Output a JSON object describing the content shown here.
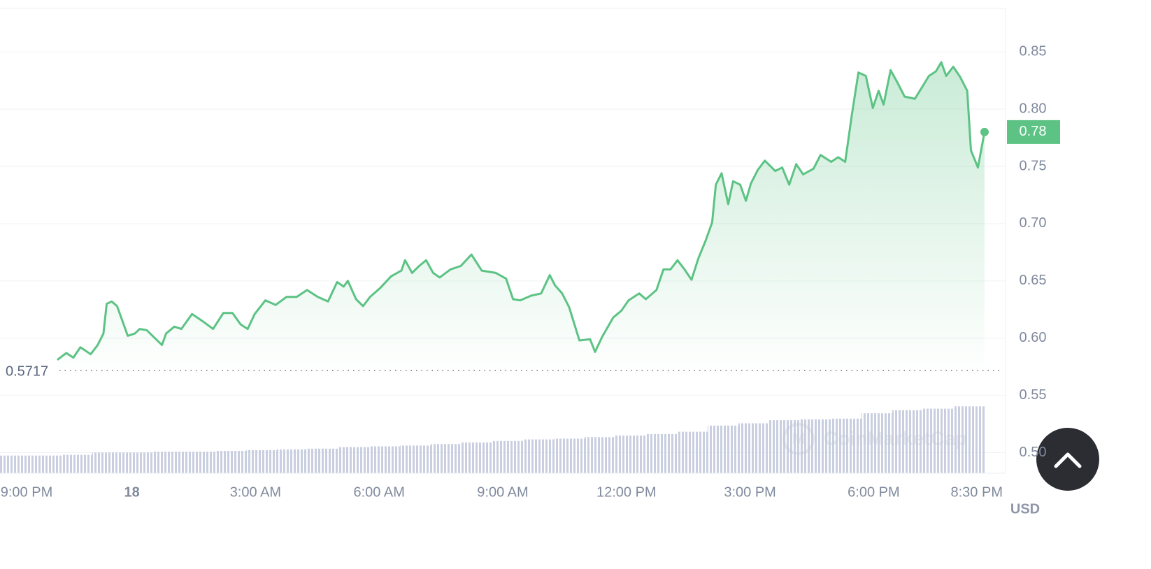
{
  "chart_data": {
    "type": "line",
    "x": [
      -1.81,
      -1.59,
      -1.42,
      -1.25,
      -1.0,
      -0.83,
      -0.69,
      -0.61,
      -0.49,
      -0.36,
      -0.1,
      0.07,
      0.19,
      0.36,
      0.53,
      0.73,
      0.83,
      1.03,
      1.2,
      1.46,
      1.71,
      1.97,
      2.22,
      2.44,
      2.64,
      2.81,
      2.98,
      3.24,
      3.49,
      3.75,
      4.0,
      4.25,
      4.51,
      4.76,
      4.98,
      5.14,
      5.24,
      5.44,
      5.61,
      5.78,
      6.03,
      6.29,
      6.54,
      6.63,
      6.8,
      6.97,
      7.14,
      7.31,
      7.47,
      7.73,
      7.98,
      8.24,
      8.49,
      8.83,
      9.08,
      9.25,
      9.42,
      9.68,
      9.93,
      10.14,
      10.27,
      10.44,
      10.61,
      10.86,
      11.12,
      11.24,
      11.41,
      11.68,
      11.88,
      12.05,
      12.31,
      12.47,
      12.73,
      12.9,
      13.07,
      13.24,
      13.41,
      13.58,
      13.75,
      13.92,
      14.08,
      14.17,
      14.31,
      14.47,
      14.59,
      14.76,
      14.9,
      15.02,
      15.19,
      15.36,
      15.61,
      15.78,
      15.95,
      16.12,
      16.29,
      16.54,
      16.71,
      16.97,
      17.14,
      17.31,
      17.47,
      17.63,
      17.81,
      17.98,
      18.12,
      18.24,
      18.41,
      18.58,
      18.75,
      19.0,
      19.17,
      19.34,
      19.51,
      19.64,
      19.76,
      19.93,
      20.1,
      20.27,
      20.36,
      20.53,
      20.69
    ],
    "series": [
      {
        "color": "#5cc384",
        "values": [
          0.581,
          0.587,
          0.583,
          0.592,
          0.586,
          0.594,
          0.604,
          0.63,
          0.632,
          0.628,
          0.602,
          0.604,
          0.608,
          0.607,
          0.601,
          0.594,
          0.604,
          0.61,
          0.608,
          0.621,
          0.615,
          0.608,
          0.622,
          0.622,
          0.612,
          0.608,
          0.621,
          0.633,
          0.629,
          0.636,
          0.636,
          0.642,
          0.636,
          0.632,
          0.649,
          0.645,
          0.65,
          0.634,
          0.628,
          0.636,
          0.644,
          0.654,
          0.659,
          0.668,
          0.657,
          0.663,
          0.668,
          0.657,
          0.653,
          0.66,
          0.663,
          0.673,
          0.659,
          0.657,
          0.652,
          0.634,
          0.633,
          0.637,
          0.639,
          0.655,
          0.646,
          0.639,
          0.627,
          0.598,
          0.599,
          0.588,
          0.601,
          0.618,
          0.624,
          0.633,
          0.639,
          0.634,
          0.642,
          0.66,
          0.66,
          0.668,
          0.66,
          0.651,
          0.67,
          0.685,
          0.701,
          0.734,
          0.744,
          0.717,
          0.737,
          0.734,
          0.72,
          0.735,
          0.747,
          0.755,
          0.746,
          0.749,
          0.734,
          0.752,
          0.743,
          0.748,
          0.76,
          0.754,
          0.758,
          0.754,
          0.795,
          0.832,
          0.829,
          0.801,
          0.816,
          0.804,
          0.834,
          0.823,
          0.811,
          0.809,
          0.819,
          0.829,
          0.833,
          0.841,
          0.829,
          0.837,
          0.828,
          0.816,
          0.764,
          0.749,
          0.78
        ]
      }
    ],
    "reference": 0.5717,
    "volume": {
      "color": "#c9cfe0",
      "lim": [
        0,
        100
      ],
      "values": [
        23,
        23,
        24,
        27,
        27,
        28,
        28,
        29,
        30,
        31,
        32,
        34,
        35,
        36,
        38,
        40,
        42,
        44,
        45,
        47,
        49,
        51,
        54,
        62,
        65,
        69,
        70,
        71,
        78,
        82,
        84,
        87
      ]
    },
    "xlim": [
      -3.2,
      21.2
    ],
    "xticks": [
      {
        "value": -3,
        "label": "9:00 PM"
      },
      {
        "value": 0,
        "label": "18"
      },
      {
        "value": 3,
        "label": "3:00 AM"
      },
      {
        "value": 6,
        "label": "6:00 AM"
      },
      {
        "value": 9,
        "label": "9:00 AM"
      },
      {
        "value": 12,
        "label": "12:00 PM"
      },
      {
        "value": 15,
        "label": "3:00 PM"
      },
      {
        "value": 18,
        "label": "6:00 PM"
      },
      {
        "value": 20.5,
        "label": "8:30 PM"
      }
    ],
    "ylim": [
      0.482,
      0.888
    ],
    "yticks": [
      {
        "value": 0.5,
        "label": "0.50"
      },
      0.55,
      {
        "value": 0.6,
        "label": "0.60"
      },
      0.65,
      {
        "value": 0.7,
        "label": "0.70"
      },
      0.75,
      {
        "value": 0.8,
        "label": "0.80"
      },
      0.85
    ],
    "grid": true,
    "currency": "USD",
    "watermark": "CoinMarketCap"
  }
}
